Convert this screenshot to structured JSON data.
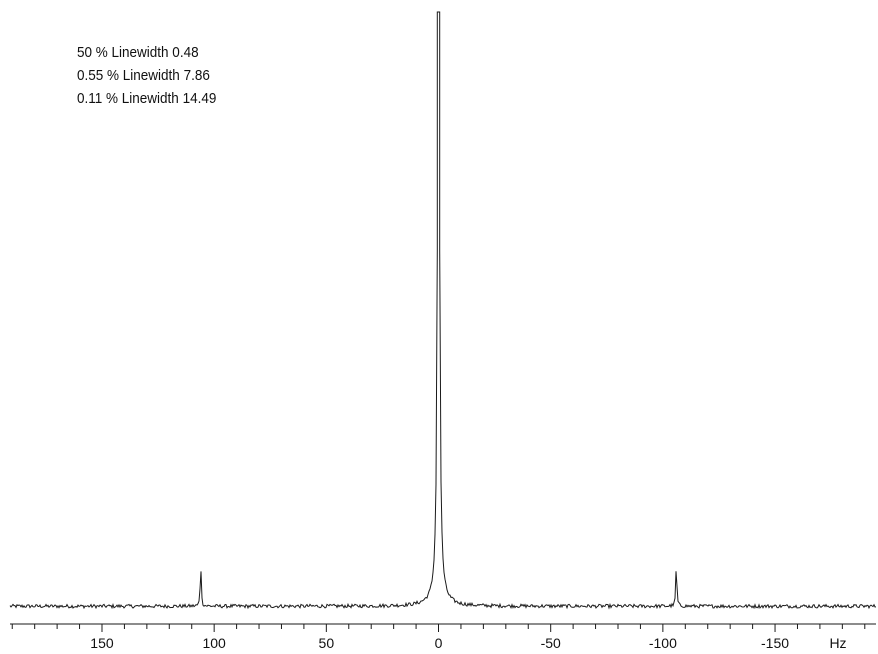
{
  "annotations": [
    "50 % Linewidth 0.48",
    "0.55 % Linewidth 7.86",
    "0.11 % Linewidth 14.49"
  ],
  "chart_data": {
    "type": "line",
    "title": "",
    "xlabel": "Hz",
    "ylabel": "",
    "xlim": [
      191,
      -195
    ],
    "x_reversed": true,
    "ylim": [
      0,
      1
    ],
    "grid": false,
    "x_major_ticks": [
      150,
      100,
      50,
      0,
      -50,
      -100,
      -150
    ],
    "x_tick_labels": [
      "150",
      "100",
      "50",
      "0",
      "-50",
      "-100",
      "-150"
    ],
    "x_minor_tick_step": 10,
    "series": [
      {
        "peaks": [
          {
            "x": 0,
            "height": 1.0,
            "note": "main peak clipped at top of plot"
          },
          {
            "x": 106,
            "height": 0.078
          },
          {
            "x": -106,
            "height": 0.078
          }
        ],
        "baseline": 0.003
      }
    ],
    "line_color": "#1a1a1a"
  }
}
